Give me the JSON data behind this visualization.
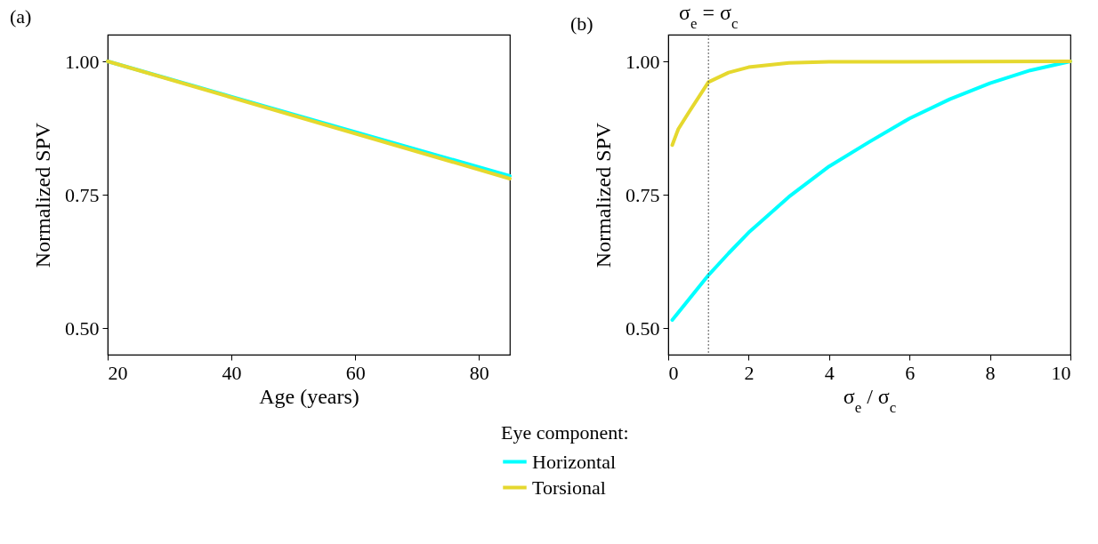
{
  "chart_data": [
    {
      "type": "line",
      "title": "(a)",
      "xlabel": "Age (years)",
      "ylabel": "Normalized SPV",
      "xlim": [
        20,
        85
      ],
      "xticks": [
        20,
        40,
        60,
        80
      ],
      "ylim": [
        0.45,
        1.05
      ],
      "yticks": [
        {
          "value": 0.5,
          "label": "0.50"
        },
        {
          "value": 0.75,
          "label": "0.75"
        },
        {
          "value": 1.0,
          "label": "1.00"
        }
      ],
      "legend": "bottom",
      "legend_title": "Eye component:",
      "line_style": "solid",
      "marker": "none",
      "series": [
        {
          "name": "Horizontal",
          "color": "#00ffff",
          "x": [
            20,
            85
          ],
          "values": [
            1.0,
            0.785
          ]
        },
        {
          "name": "Torsional",
          "color": "#e5d82e",
          "x": [
            20,
            85
          ],
          "values": [
            1.0,
            0.78
          ]
        }
      ]
    },
    {
      "type": "line",
      "title": "(b)",
      "xlabel": "σ$_{e}$ / σ$_{c}$",
      "ylabel": "Normalized SPV",
      "xlim": [
        0,
        10
      ],
      "xticks": [
        0,
        2,
        4,
        6,
        8,
        10
      ],
      "ylim": [
        0.45,
        1.05
      ],
      "yticks": [
        {
          "value": 0.5,
          "label": "0.50"
        },
        {
          "value": 0.75,
          "label": "0.75"
        },
        {
          "value": 1.0,
          "label": "1.00"
        }
      ],
      "line_style": "solid",
      "marker": "none",
      "ref_lines": [
        {
          "axis": "x",
          "value": 1,
          "label": "σ$_{e}$ = σ$_{c}$",
          "line_style": "dotted",
          "color": "#555555"
        }
      ],
      "series": [
        {
          "color": "#00ffff",
          "x": [
            0.1,
            1,
            1.5,
            2,
            3,
            4,
            5,
            6,
            7,
            8,
            9,
            10
          ],
          "values": [
            0.515,
            0.599,
            0.64,
            0.679,
            0.746,
            0.803,
            0.849,
            0.893,
            0.929,
            0.959,
            0.983,
            1.0
          ]
        },
        {
          "color": "#e5d82e",
          "x": [
            0.1,
            0.25,
            0.5,
            1,
            1.5,
            2,
            3,
            4,
            10
          ],
          "values": [
            0.843,
            0.873,
            0.903,
            0.961,
            0.979,
            0.989,
            0.997,
            0.999,
            1.0
          ]
        }
      ]
    }
  ]
}
